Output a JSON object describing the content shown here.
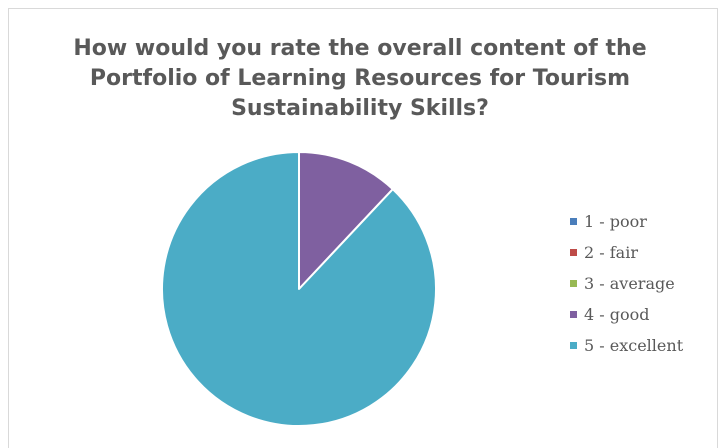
{
  "chart_data": {
    "type": "pie",
    "title_lines": [
      "How would you rate the overall content of the",
      "Portfolio of Learning Resources for Tourism",
      "Sustainability Skills?"
    ],
    "categories": [
      "1 - poor",
      "2 - fair",
      "3 - average",
      "4 - good",
      "5 - excellent"
    ],
    "values": [
      0,
      0,
      0,
      12,
      88
    ],
    "colors": [
      "#4a7ebb",
      "#be4b48",
      "#98b954",
      "#7f60a0",
      "#4bacc6"
    ],
    "legend_position": "right"
  }
}
